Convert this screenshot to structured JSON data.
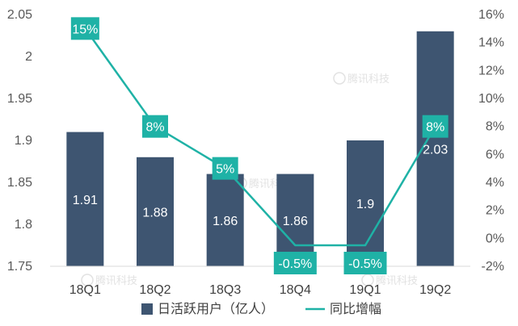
{
  "chart_data": {
    "type": "bar",
    "categories": [
      "18Q1",
      "18Q2",
      "18Q3",
      "18Q4",
      "19Q1",
      "19Q2"
    ],
    "series": [
      {
        "name": "日活跃用户（亿人）",
        "type": "bar",
        "axis": "left",
        "values": [
          1.91,
          1.88,
          1.86,
          1.86,
          1.9,
          2.03
        ],
        "labels": [
          "1.91",
          "1.88",
          "1.86",
          "1.86",
          "1.9",
          "2.03"
        ],
        "color": "#3e5571"
      },
      {
        "name": "同比增幅",
        "type": "line",
        "axis": "right",
        "values": [
          15,
          8,
          5,
          -0.5,
          -0.5,
          8
        ],
        "labels": [
          "15%",
          "8%",
          "5%",
          "-0.5%",
          "-0.5%",
          "8%"
        ],
        "color": "#1fb2a6"
      }
    ],
    "y_left": {
      "ylim": [
        1.75,
        2.05
      ],
      "ticks": [
        "1.75",
        "1.8",
        "1.85",
        "1.9",
        "1.95",
        "2",
        "2.05"
      ],
      "tick_values": [
        1.75,
        1.8,
        1.85,
        1.9,
        1.95,
        2.0,
        2.05
      ]
    },
    "y_right": {
      "ylim": [
        -2,
        16
      ],
      "ticks": [
        "-2%",
        "0%",
        "2%",
        "4%",
        "6%",
        "8%",
        "10%",
        "12%",
        "14%",
        "16%"
      ],
      "tick_values": [
        -2,
        0,
        2,
        4,
        6,
        8,
        10,
        12,
        14,
        16
      ]
    },
    "legend_position": "bottom",
    "grid": false
  },
  "watermark": {
    "text": "腾讯科技"
  }
}
